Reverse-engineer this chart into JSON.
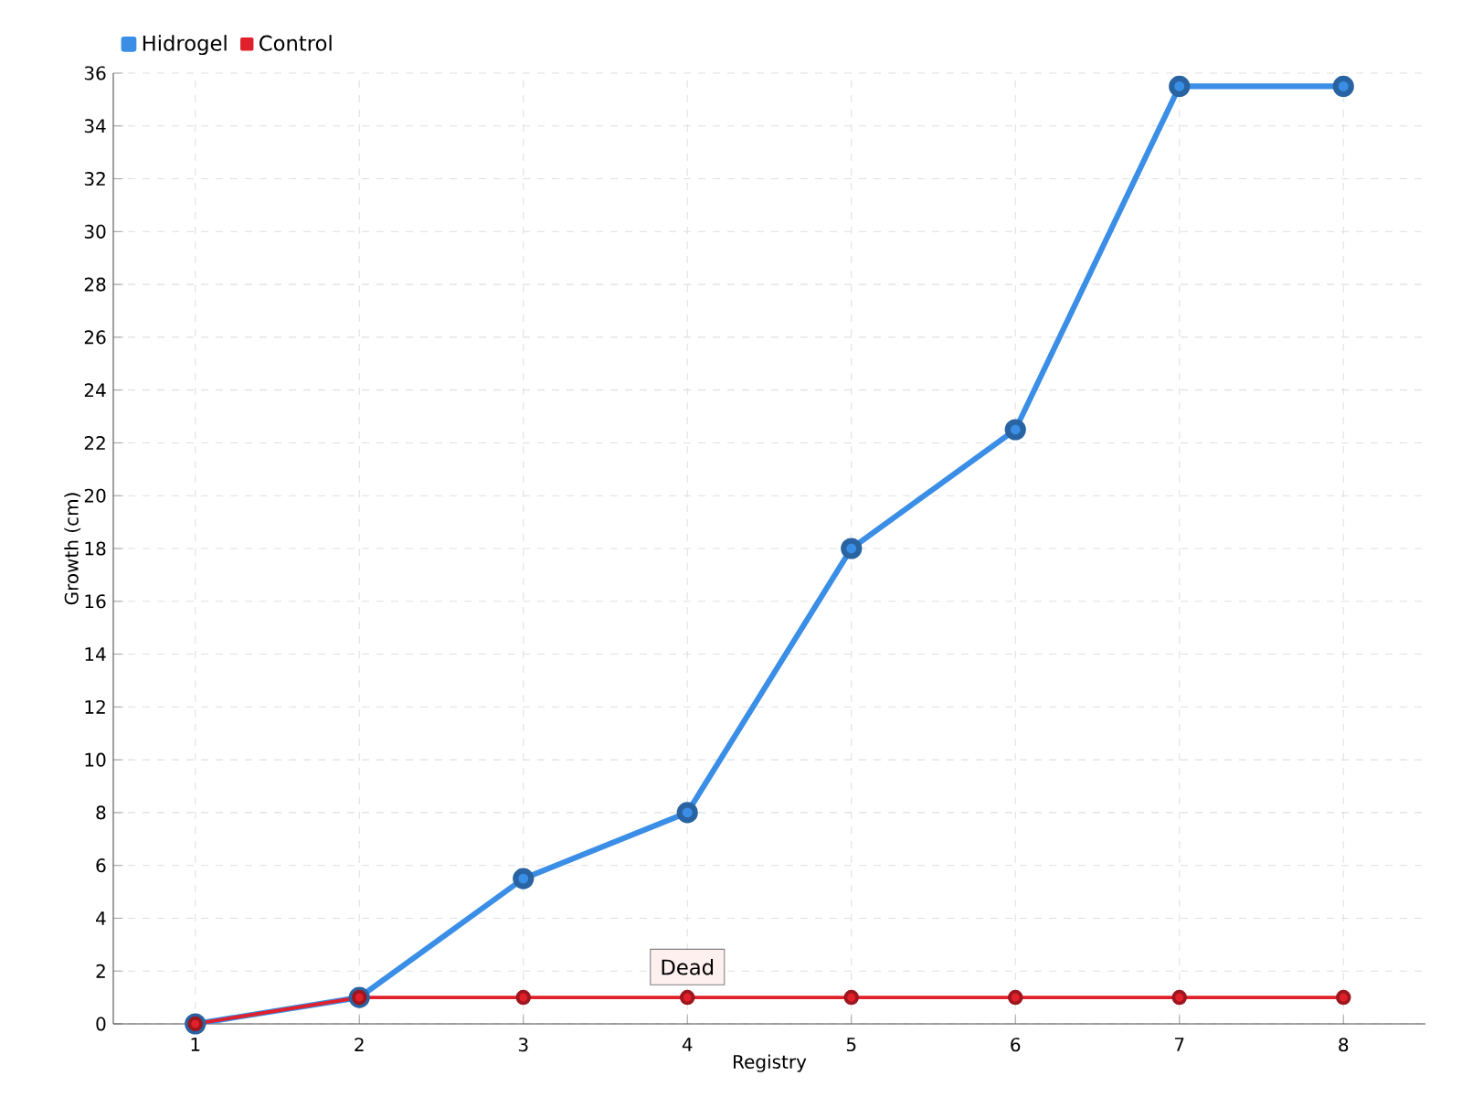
{
  "chart_data": {
    "type": "line",
    "xlabel": "Registry",
    "ylabel": "Growth (cm)",
    "categories": [
      "1",
      "2",
      "3",
      "4",
      "5",
      "6",
      "7",
      "8"
    ],
    "series": [
      {
        "name": "Hidrogel",
        "color": "#3a8ee6",
        "values": [
          0,
          1,
          5.5,
          8,
          18,
          22.5,
          35.5,
          35.5
        ]
      },
      {
        "name": "Control",
        "color": "#e0202a",
        "values": [
          0,
          1,
          1,
          1,
          1,
          1,
          1,
          1
        ]
      }
    ],
    "ylim": [
      0,
      36
    ],
    "yticks": [
      0,
      2,
      4,
      6,
      8,
      10,
      12,
      14,
      16,
      18,
      20,
      22,
      24,
      26,
      28,
      30,
      32,
      34,
      36
    ],
    "grid": true,
    "legend": "top left",
    "marker": "circle",
    "line_style": "solid",
    "annotations": [
      {
        "text": "Dead",
        "x": "4",
        "y": 1
      }
    ]
  }
}
